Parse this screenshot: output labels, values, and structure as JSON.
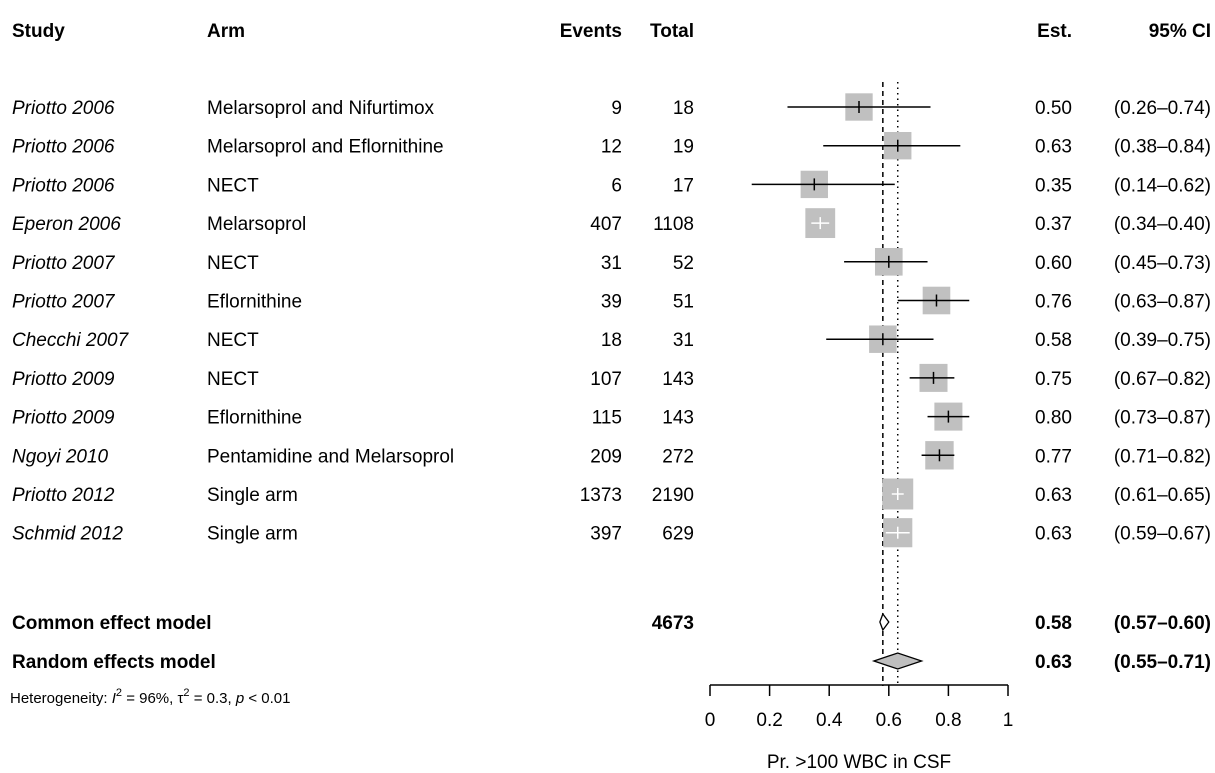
{
  "headers": {
    "study": "Study",
    "arm": "Arm",
    "events": "Events",
    "total": "Total",
    "est": "Est.",
    "ci": "95% CI"
  },
  "chart_data": {
    "type": "forest",
    "xlabel": "Pr. >100 WBC in CSF",
    "xlim": [
      0,
      1
    ],
    "xticks": [
      "0",
      "0.2",
      "0.4",
      "0.6",
      "0.8",
      "1"
    ],
    "common_line": 0.58,
    "random_line": 0.63,
    "studies": [
      {
        "study": "Priotto 2006",
        "arm": "Melarsoprol and Nifurtimox",
        "events": "9",
        "total": "18",
        "est": 0.5,
        "lo": 0.26,
        "hi": 0.74,
        "est_text": "0.50",
        "ci_text": "(0.26–0.74)"
      },
      {
        "study": "Priotto 2006",
        "arm": "Melarsoprol and Eflornithine",
        "events": "12",
        "total": "19",
        "est": 0.63,
        "lo": 0.38,
        "hi": 0.84,
        "est_text": "0.63",
        "ci_text": "(0.38–0.84)"
      },
      {
        "study": "Priotto 2006",
        "arm": "NECT",
        "events": "6",
        "total": "17",
        "est": 0.35,
        "lo": 0.14,
        "hi": 0.62,
        "est_text": "0.35",
        "ci_text": "(0.14–0.62)"
      },
      {
        "study": "Eperon 2006",
        "arm": "Melarsoprol",
        "events": "407",
        "total": "1108",
        "est": 0.37,
        "lo": 0.34,
        "hi": 0.4,
        "est_text": "0.37",
        "ci_text": "(0.34–0.40)"
      },
      {
        "study": "Priotto 2007",
        "arm": "NECT",
        "events": "31",
        "total": "52",
        "est": 0.6,
        "lo": 0.45,
        "hi": 0.73,
        "est_text": "0.60",
        "ci_text": "(0.45–0.73)"
      },
      {
        "study": "Priotto 2007",
        "arm": "Eflornithine",
        "events": "39",
        "total": "51",
        "est": 0.76,
        "lo": 0.63,
        "hi": 0.87,
        "est_text": "0.76",
        "ci_text": "(0.63–0.87)"
      },
      {
        "study": "Checchi 2007",
        "arm": "NECT",
        "events": "18",
        "total": "31",
        "est": 0.58,
        "lo": 0.39,
        "hi": 0.75,
        "est_text": "0.58",
        "ci_text": "(0.39–0.75)"
      },
      {
        "study": "Priotto 2009",
        "arm": "NECT",
        "events": "107",
        "total": "143",
        "est": 0.75,
        "lo": 0.67,
        "hi": 0.82,
        "est_text": "0.75",
        "ci_text": "(0.67–0.82)"
      },
      {
        "study": "Priotto 2009",
        "arm": "Eflornithine",
        "events": "115",
        "total": "143",
        "est": 0.8,
        "lo": 0.73,
        "hi": 0.87,
        "est_text": "0.80",
        "ci_text": "(0.73–0.87)"
      },
      {
        "study": "Ngoyi 2010",
        "arm": "Pentamidine and Melarsoprol",
        "events": "209",
        "total": "272",
        "est": 0.77,
        "lo": 0.71,
        "hi": 0.82,
        "est_text": "0.77",
        "ci_text": "(0.71–0.82)"
      },
      {
        "study": "Priotto 2012",
        "arm": "Single arm",
        "events": "1373",
        "total": "2190",
        "est": 0.63,
        "lo": 0.61,
        "hi": 0.65,
        "est_text": "0.63",
        "ci_text": "(0.61–0.65)"
      },
      {
        "study": "Schmid 2012",
        "arm": "Single arm",
        "events": "397",
        "total": "629",
        "est": 0.63,
        "lo": 0.59,
        "hi": 0.67,
        "est_text": "0.63",
        "ci_text": "(0.59–0.67)"
      }
    ],
    "pooled": [
      {
        "label": "Common effect model",
        "total": "4673",
        "est": 0.58,
        "lo": 0.57,
        "hi": 0.6,
        "est_text": "0.58",
        "ci_text": "(0.57–0.60)",
        "fill": "#ffffff"
      },
      {
        "label": "Random effects model",
        "total": "",
        "est": 0.63,
        "lo": 0.55,
        "hi": 0.71,
        "est_text": "0.63",
        "ci_text": "(0.55–0.71)",
        "fill": "#bfbfbf"
      }
    ],
    "heterogeneity": {
      "prefix": "Heterogeneity: ",
      "i2_symbol": "I",
      "i2_value": " = 96%, ",
      "tau_symbol": "τ",
      "tau_value": " = 0.3, ",
      "p_symbol": "p",
      "p_value": " < 0.01"
    },
    "colors": {
      "square": "#c0c0c0",
      "line": "#000000",
      "inner_tick": "#ffffff"
    }
  }
}
